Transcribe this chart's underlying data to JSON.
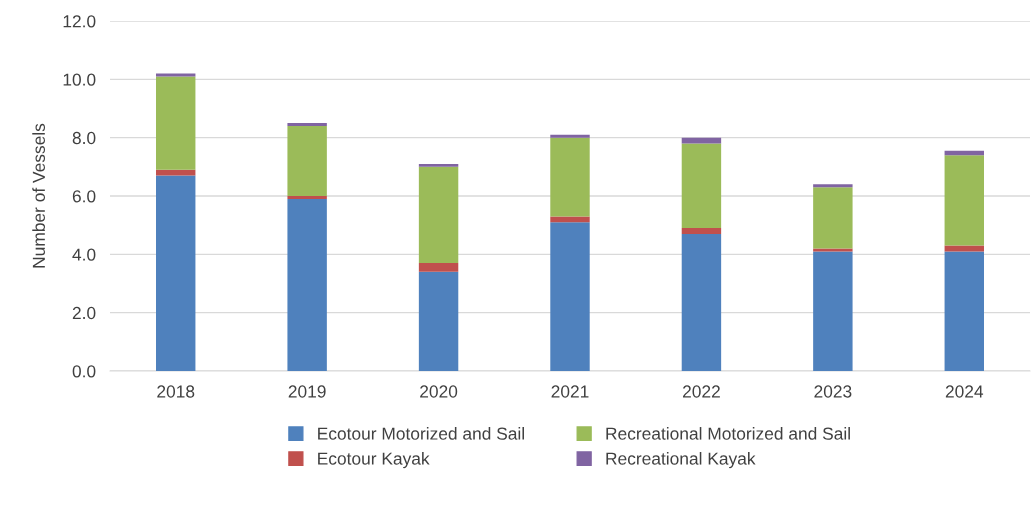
{
  "chart_data": {
    "type": "bar",
    "stacked": true,
    "ylabel": "Number of Vessels",
    "categories": [
      "2018",
      "2019",
      "2020",
      "2021",
      "2022",
      "2023",
      "2024"
    ],
    "series": [
      {
        "name": "Ecotour Motorized and Sail",
        "color": "#4f81bd",
        "values": [
          6.7,
          5.9,
          3.4,
          5.1,
          4.7,
          4.1,
          4.1
        ]
      },
      {
        "name": "Ecotour Kayak",
        "color": "#c0504d",
        "values": [
          0.2,
          0.1,
          0.3,
          0.2,
          0.2,
          0.1,
          0.2
        ]
      },
      {
        "name": "Recreational Motorized and Sail",
        "color": "#9bbb59",
        "values": [
          3.2,
          2.4,
          3.3,
          2.7,
          2.9,
          2.1,
          3.1
        ]
      },
      {
        "name": "Recreational Kayak",
        "color": "#8064a2",
        "values": [
          0.1,
          0.1,
          0.1,
          0.1,
          0.2,
          0.1,
          0.15
        ]
      }
    ],
    "ylim": [
      0,
      12
    ],
    "yticks": [
      {
        "value": 0,
        "label": "0.0"
      },
      {
        "value": 2,
        "label": "2.0"
      },
      {
        "value": 4,
        "label": "4.0"
      },
      {
        "value": 6,
        "label": "6.0"
      },
      {
        "value": 8,
        "label": "8.0"
      },
      {
        "value": 10,
        "label": "10.0"
      },
      {
        "value": 12,
        "label": "12.0"
      }
    ],
    "grid": "y",
    "legend": "bottom"
  }
}
